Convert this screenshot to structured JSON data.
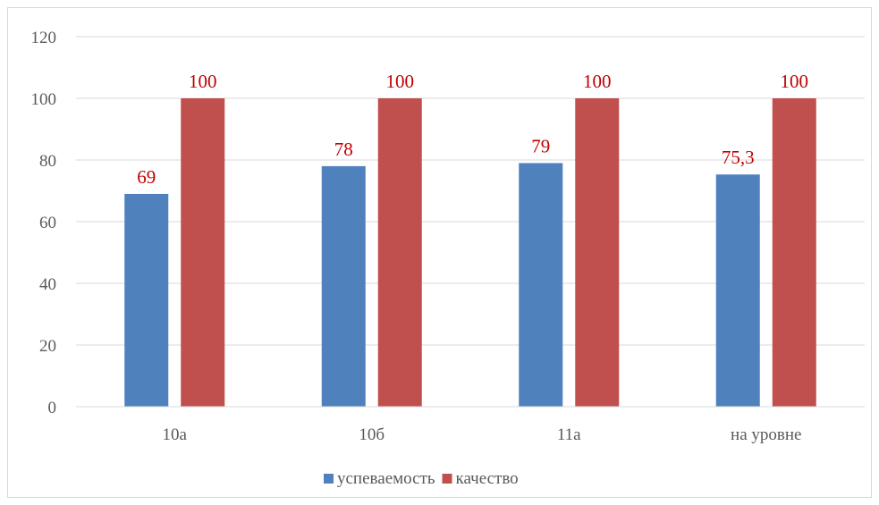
{
  "chart_data": {
    "type": "bar",
    "title": "",
    "xlabel": "",
    "ylabel": "",
    "categories": [
      "10а",
      "10б",
      "11а",
      "на уровне"
    ],
    "series": [
      {
        "name": "успеваемость",
        "values": [
          69,
          78,
          79,
          75.3
        ],
        "labels": [
          "69",
          "78",
          "79",
          "75,3"
        ],
        "color": "#4f81bd"
      },
      {
        "name": "качество",
        "values": [
          100,
          100,
          100,
          100
        ],
        "labels": [
          "100",
          "100",
          "100",
          "100"
        ],
        "color": "#c0504d"
      }
    ],
    "ylim": [
      0,
      120
    ],
    "yticks": [
      0,
      20,
      40,
      60,
      80,
      100,
      120
    ],
    "grid": true,
    "legend": "bottom",
    "data_label_color": "#c00000"
  }
}
